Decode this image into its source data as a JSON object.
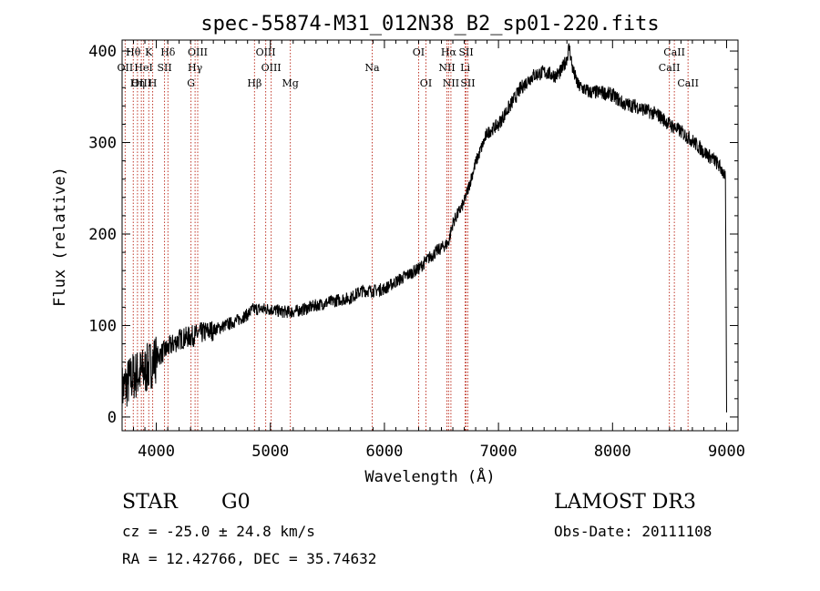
{
  "chart_data": {
    "type": "line",
    "title": "spec-55874-M31_012N38_B2_sp01-220.fits",
    "xlabel": "Wavelength (Å)",
    "ylabel": "Flux (relative)",
    "xlim": [
      3700,
      9100
    ],
    "ylim": [
      -15,
      412
    ],
    "x_ticks": [
      4000,
      5000,
      6000,
      7000,
      8000,
      9000
    ],
    "y_ticks": [
      0,
      100,
      200,
      300,
      400
    ],
    "series": [
      {
        "name": "flux",
        "color": "#000000",
        "x": [
          3700,
          3800,
          3900,
          4000,
          4100,
          4200,
          4300,
          4400,
          4500,
          4600,
          4700,
          4800,
          4850,
          4900,
          5000,
          5100,
          5200,
          5300,
          5400,
          5500,
          5600,
          5700,
          5800,
          5900,
          6000,
          6100,
          6200,
          6300,
          6400,
          6500,
          6560,
          6600,
          6700,
          6800,
          6900,
          7000,
          7100,
          7200,
          7300,
          7400,
          7500,
          7550,
          7600,
          7620,
          7650,
          7700,
          7800,
          7900,
          8000,
          8100,
          8200,
          8300,
          8400,
          8500,
          8600,
          8700,
          8800,
          8900,
          8960,
          8990,
          9000
        ],
        "y": [
          30,
          45,
          50,
          65,
          75,
          85,
          88,
          92,
          95,
          100,
          105,
          112,
          118,
          118,
          118,
          115,
          115,
          118,
          122,
          125,
          128,
          130,
          138,
          138,
          140,
          148,
          155,
          162,
          175,
          185,
          190,
          212,
          235,
          278,
          310,
          320,
          340,
          360,
          373,
          377,
          373,
          378,
          392,
          405,
          380,
          362,
          355,
          355,
          352,
          342,
          340,
          335,
          330,
          320,
          312,
          302,
          290,
          280,
          270,
          260,
          5
        ]
      }
    ],
    "lines": [
      {
        "label": "Hθ",
        "wave": 3798,
        "row": 0
      },
      {
        "label": "K",
        "wave": 3934,
        "row": 0
      },
      {
        "label": "Hδ",
        "wave": 4102,
        "row": 0
      },
      {
        "label": "OIII",
        "wave": 4363,
        "row": 0
      },
      {
        "label": "OIII",
        "wave": 4959,
        "row": 0
      },
      {
        "label": "OI",
        "wave": 6300,
        "row": 0
      },
      {
        "label": "Hα",
        "wave": 6563,
        "row": 0
      },
      {
        "label": "SII",
        "wave": 6716,
        "row": 0
      },
      {
        "label": "CaII",
        "wave": 8542,
        "row": 0
      },
      {
        "label": "OII",
        "wave": 3727,
        "row": 1
      },
      {
        "label": "HeI",
        "wave": 3889,
        "row": 1
      },
      {
        "label": "SII",
        "wave": 4072,
        "row": 1
      },
      {
        "label": "Hγ",
        "wave": 4340,
        "row": 1
      },
      {
        "label": "OIII",
        "wave": 5007,
        "row": 1
      },
      {
        "label": "Na",
        "wave": 5893,
        "row": 1
      },
      {
        "label": "NII",
        "wave": 6548,
        "row": 1
      },
      {
        "label": "Li",
        "wave": 6708,
        "row": 1
      },
      {
        "label": "CaII",
        "wave": 8498,
        "row": 1
      },
      {
        "label": "OIII",
        "wave": 3869,
        "row": 2
      },
      {
        "label": "Hη",
        "wave": 3835,
        "row": 2
      },
      {
        "label": "H",
        "wave": 3968,
        "row": 2
      },
      {
        "label": "G",
        "wave": 4304,
        "row": 2
      },
      {
        "label": "Hβ",
        "wave": 4861,
        "row": 2
      },
      {
        "label": "Mg",
        "wave": 5175,
        "row": 2
      },
      {
        "label": "OI",
        "wave": 6364,
        "row": 2
      },
      {
        "label": "NII",
        "wave": 6583,
        "row": 2
      },
      {
        "label": "SII",
        "wave": 6731,
        "row": 2
      },
      {
        "label": "CaII",
        "wave": 8662,
        "row": 2
      }
    ]
  },
  "info": {
    "object_type": "STAR",
    "subclass": "G0",
    "survey": "LAMOST DR3",
    "redshift": "cz = -25.0 ± 24.8 km/s",
    "obs_date": "Obs-Date: 20111108",
    "coords": "RA =  12.42766, DEC =  35.74632"
  }
}
